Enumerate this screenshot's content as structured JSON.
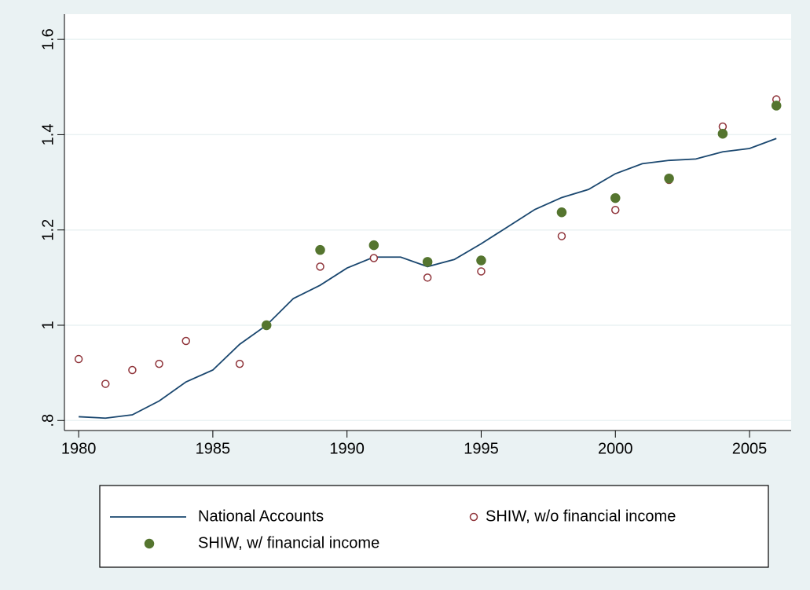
{
  "chart_data": {
    "type": "line",
    "xlim": [
      1979.47,
      2006.55
    ],
    "ylim": [
      0.779,
      1.653
    ],
    "xticks": [
      1980,
      1985,
      1990,
      1995,
      2000,
      2005
    ],
    "yticks": [
      {
        "value": 0.8,
        "label": ".8"
      },
      1,
      1.2,
      1.4,
      1.6
    ],
    "grid": true,
    "legend_position": "bottom",
    "series": [
      {
        "name": "National Accounts",
        "style": "line",
        "color": "#1a476f",
        "x": [
          1980,
          1981,
          1982,
          1983,
          1984,
          1985,
          1986,
          1987,
          1988,
          1989,
          1990,
          1991,
          1992,
          1993,
          1994,
          1995,
          1996,
          1997,
          1998,
          1999,
          2000,
          2001,
          2002,
          2003,
          2004,
          2005,
          2006
        ],
        "values": [
          0.808,
          0.805,
          0.812,
          0.841,
          0.881,
          0.906,
          0.96,
          1.0,
          1.056,
          1.084,
          1.12,
          1.143,
          1.143,
          1.123,
          1.138,
          1.171,
          1.207,
          1.243,
          1.268,
          1.285,
          1.318,
          1.339,
          1.346,
          1.349,
          1.364,
          1.371,
          1.392
        ]
      },
      {
        "name": "SHIW, w/o financial income",
        "style": "hollow-circle",
        "color": "#90353b",
        "x": [
          1980,
          1981,
          1982,
          1983,
          1984,
          1986,
          1989,
          1991,
          1993,
          1995,
          1998,
          2000,
          2002,
          2004,
          2006
        ],
        "values": [
          0.929,
          0.877,
          0.906,
          0.919,
          0.967,
          0.919,
          1.123,
          1.141,
          1.1,
          1.113,
          1.187,
          1.242,
          1.305,
          1.417,
          1.474
        ]
      },
      {
        "name": "SHIW, w/ financial income",
        "style": "filled-circle",
        "color": "#55752f",
        "x": [
          1987,
          1989,
          1991,
          1993,
          1995,
          1998,
          2000,
          2002,
          2004,
          2006
        ],
        "values": [
          1.0,
          1.158,
          1.168,
          1.133,
          1.136,
          1.237,
          1.267,
          1.308,
          1.402,
          1.461
        ]
      }
    ]
  }
}
